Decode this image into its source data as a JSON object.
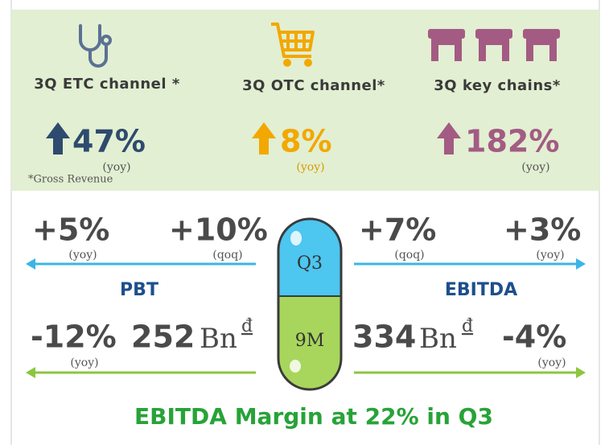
{
  "highlights": [
    {
      "label": "3Q ETC channel *",
      "value": "47%",
      "period": "(yoy)",
      "note": "*Gross Revenue"
    },
    {
      "label": "3Q OTC channel*",
      "value": "8%",
      "period": "(yoy)"
    },
    {
      "label": "3Q key chains*",
      "value": "182%",
      "period": "(yoy)"
    }
  ],
  "pbt": {
    "title": "PBT",
    "q3_yoy": {
      "value": "+5%",
      "period": "(yoy)"
    },
    "q3_qoq": {
      "value": "+10%",
      "period": "(qoq)"
    },
    "m9_yoy": {
      "value": "-12%",
      "period": "(yoy)"
    },
    "m9_amount": {
      "value": "252",
      "unit": "Bn",
      "currency": "đ"
    }
  },
  "ebitda": {
    "title": "EBITDA",
    "q3_qoq": {
      "value": "+7%",
      "period": "(qoq)"
    },
    "q3_yoy": {
      "value": "+3%",
      "period": "(yoy)"
    },
    "m9_amount": {
      "value": "334",
      "unit": "Bn",
      "currency": "đ"
    },
    "m9_yoy": {
      "value": "-4%",
      "period": "(yoy)"
    }
  },
  "pill": {
    "top": "Q3",
    "bottom": "9M"
  },
  "footer": "EBITDA Margin at 22% in Q3"
}
